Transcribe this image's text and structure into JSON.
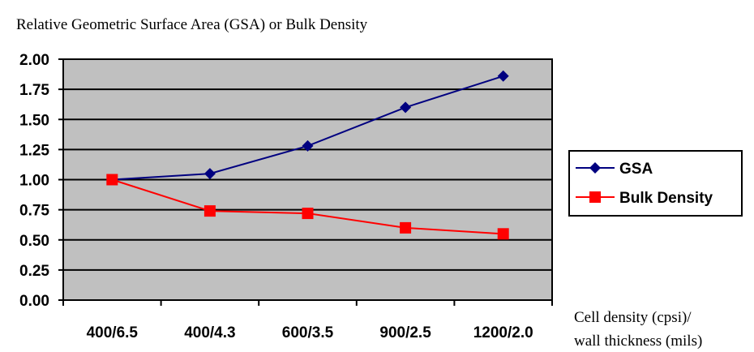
{
  "chart_data": {
    "type": "line",
    "title": "Relative Geometric Surface Area (GSA) or Bulk Density",
    "xlabel_line1": "Cell density (cpsi)/",
    "xlabel_line2": "wall thickness (mils)",
    "ylabel": "",
    "categories": [
      "400/6.5",
      "400/4.3",
      "600/3.5",
      "900/2.5",
      "1200/2.0"
    ],
    "ylim": [
      0,
      2
    ],
    "yticks": [
      "0.00",
      "0.25",
      "0.50",
      "0.75",
      "1.00",
      "1.25",
      "1.50",
      "1.75",
      "2.00"
    ],
    "grid": true,
    "legend_position": "right",
    "series": [
      {
        "name": "GSA",
        "marker": "diamond",
        "color": "#000080",
        "values": [
          1.0,
          1.05,
          1.28,
          1.6,
          1.86
        ]
      },
      {
        "name": "Bulk Density",
        "marker": "square",
        "color": "#ff0000",
        "values": [
          1.0,
          0.74,
          0.72,
          0.6,
          0.55
        ]
      }
    ],
    "plot_background": "#c0c0c0"
  }
}
